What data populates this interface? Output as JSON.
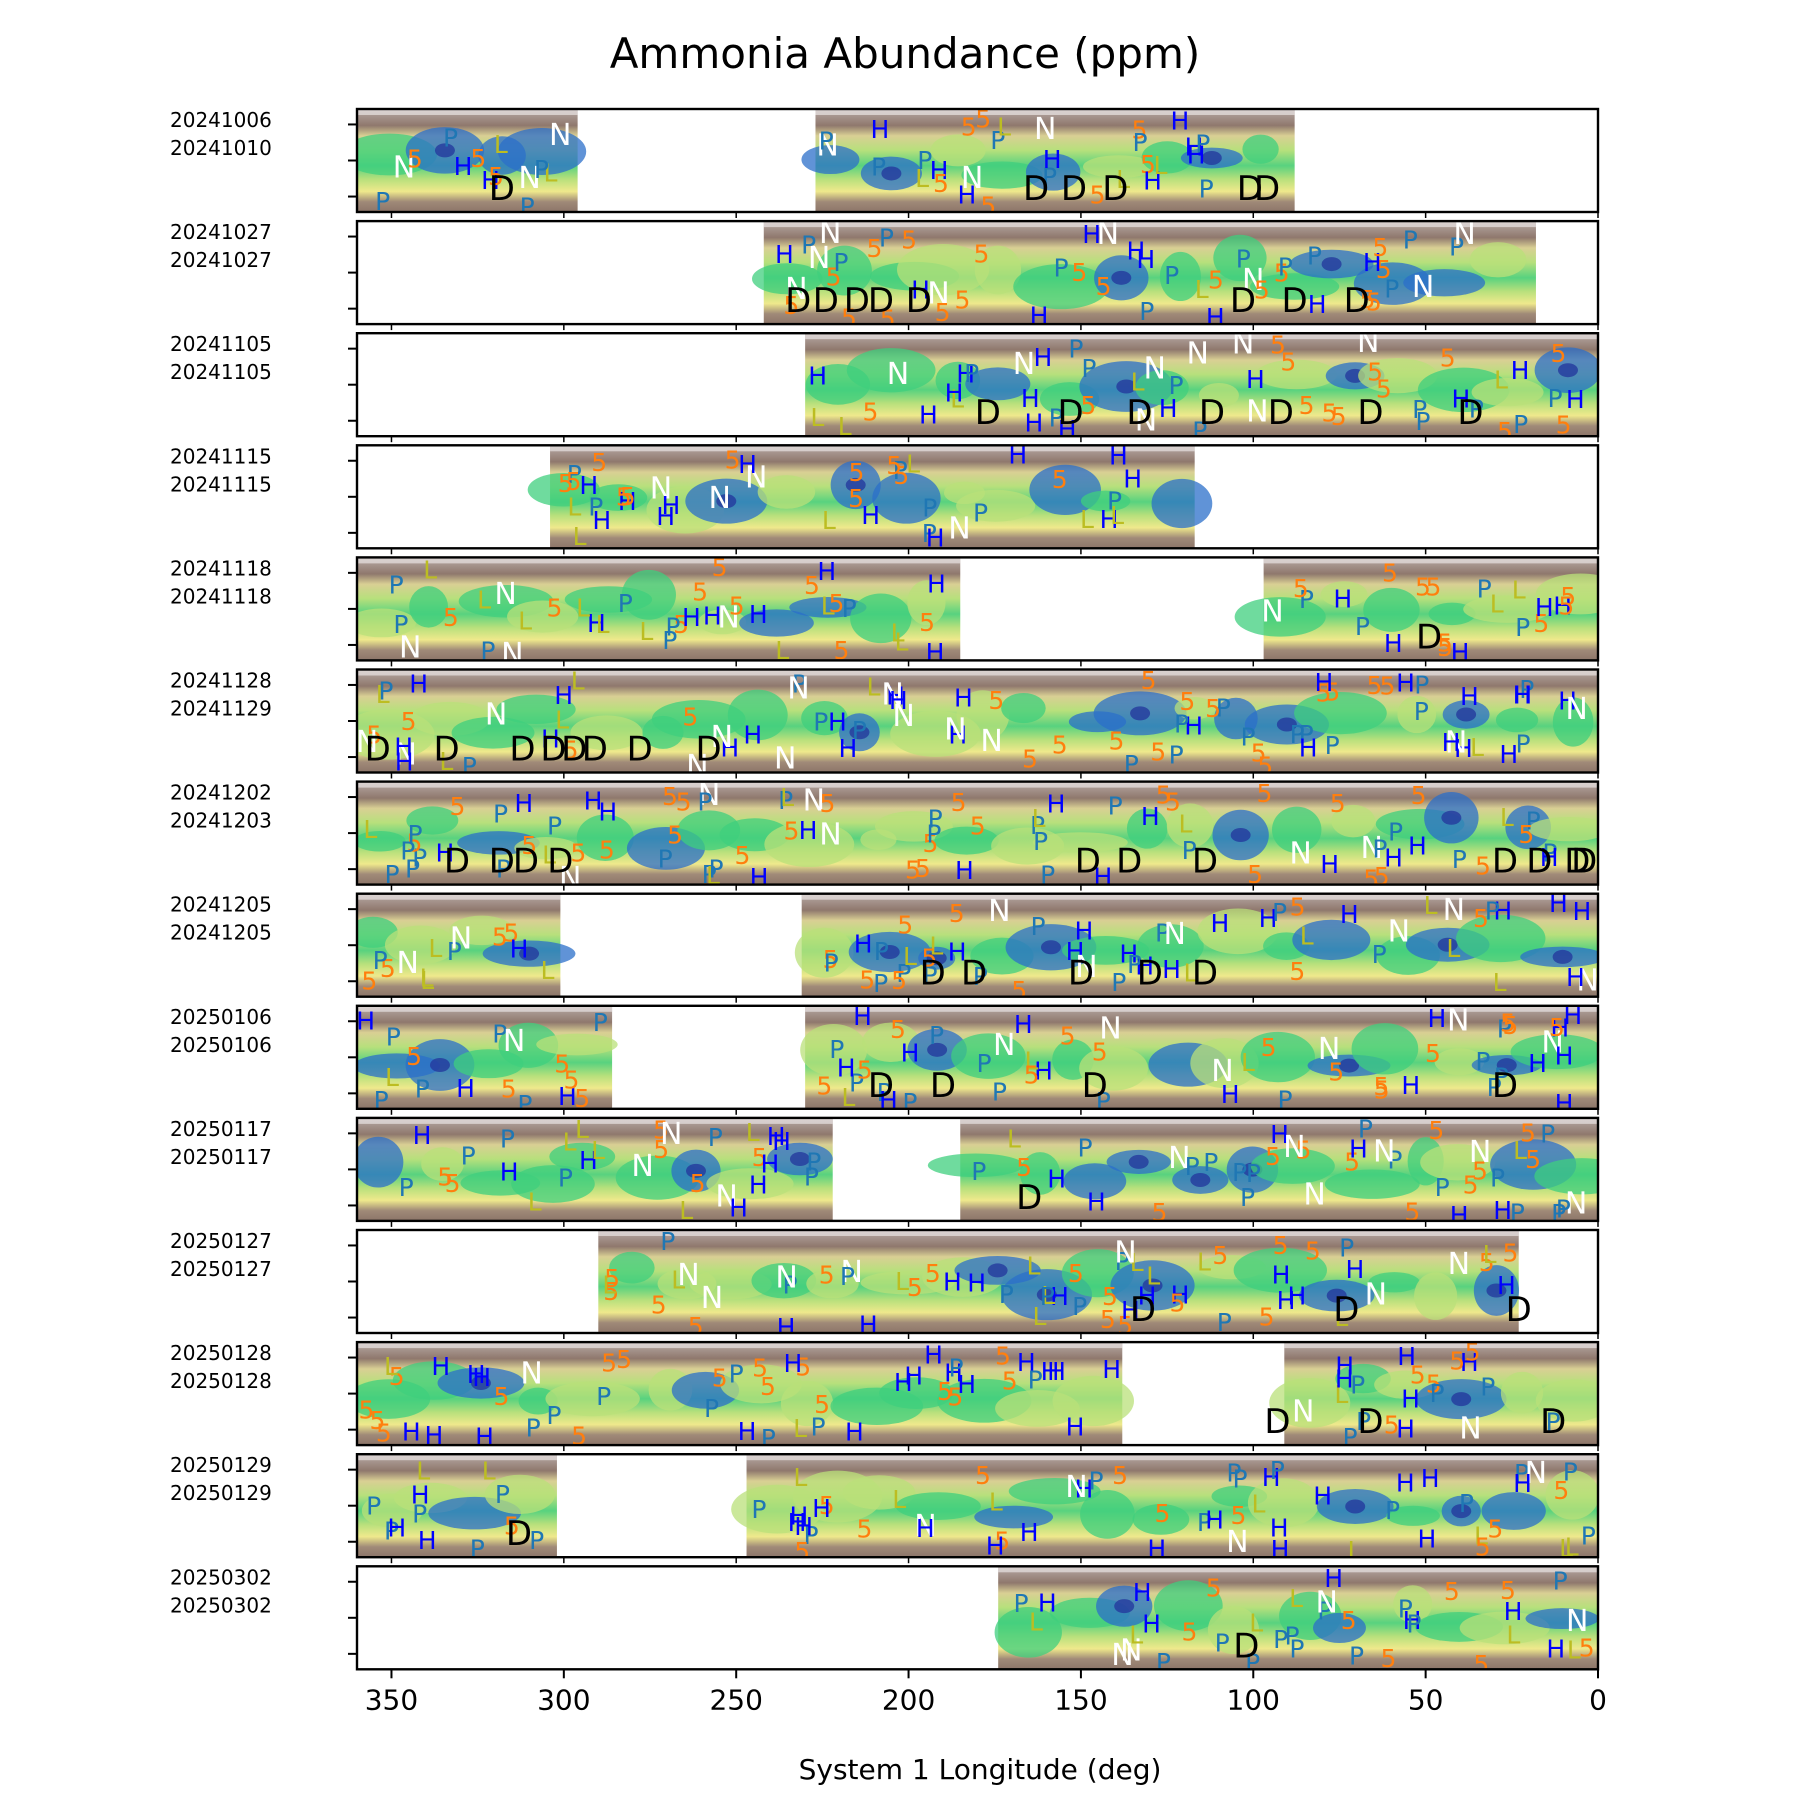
{
  "figure": {
    "title": "Ammonia Abundance (ppm)",
    "xlabel": "System 1 Longitude (deg)"
  },
  "chart_data": {
    "type": "heatmap",
    "title": "Ammonia Abundance (ppm)",
    "xlabel": "System 1 Longitude (deg)",
    "ylabel": "",
    "xlim": [
      360,
      0
    ],
    "xticks": [
      350,
      300,
      250,
      200,
      150,
      100,
      50,
      0
    ],
    "grid": false,
    "legend": "none",
    "colormap": [
      "#ffffff",
      "#d9d4d4",
      "#8c7569",
      "#c9b58a",
      "#f2ee8e",
      "#b9e07a",
      "#3fcf7d",
      "#1aa6a8",
      "#2b6fc9",
      "#243a9e"
    ],
    "marker_colors": {
      "5": "#ff7f0e",
      "H": "#0000ff",
      "P": "#1f77b4",
      "N": "#ffffff",
      "L": "#bcbd22",
      "D": "#000000"
    },
    "panels": [
      {
        "date_start": "20241006",
        "date_end": "20241010",
        "coverage": [
          [
            360,
            296
          ],
          [
            227,
            88
          ]
        ],
        "markers": [
          {
            "t": "D",
            "lon": 318
          },
          {
            "t": "D",
            "lon": 163
          },
          {
            "t": "D",
            "lon": 152
          },
          {
            "t": "D",
            "lon": 140
          },
          {
            "t": "D",
            "lon": 101
          },
          {
            "t": "D",
            "lon": 96
          }
        ]
      },
      {
        "date_start": "20241027",
        "date_end": "20241027",
        "coverage": [
          [
            242,
            18
          ]
        ],
        "markers": [
          {
            "t": "D",
            "lon": 232
          },
          {
            "t": "D",
            "lon": 224
          },
          {
            "t": "D",
            "lon": 215
          },
          {
            "t": "D",
            "lon": 208
          },
          {
            "t": "D",
            "lon": 197
          },
          {
            "t": "D",
            "lon": 103
          },
          {
            "t": "D",
            "lon": 88
          },
          {
            "t": "D",
            "lon": 70
          }
        ]
      },
      {
        "date_start": "20241105",
        "date_end": "20241105",
        "coverage": [
          [
            230,
            0
          ]
        ],
        "markers": [
          {
            "t": "D",
            "lon": 177
          },
          {
            "t": "D",
            "lon": 153
          },
          {
            "t": "D",
            "lon": 133
          },
          {
            "t": "D",
            "lon": 112
          },
          {
            "t": "D",
            "lon": 92
          },
          {
            "t": "D",
            "lon": 66
          },
          {
            "t": "D",
            "lon": 37
          }
        ]
      },
      {
        "date_start": "20241115",
        "date_end": "20241115",
        "coverage": [
          [
            304,
            117
          ]
        ],
        "markers": []
      },
      {
        "date_start": "20241118",
        "date_end": "20241118",
        "coverage": [
          [
            360,
            185
          ],
          [
            97,
            0
          ]
        ],
        "markers": [
          {
            "t": "D",
            "lon": 49
          }
        ]
      },
      {
        "date_start": "20241128",
        "date_end": "20241129",
        "coverage": [
          [
            360,
            0
          ]
        ],
        "markers": [
          {
            "t": "D",
            "lon": 354
          },
          {
            "t": "D",
            "lon": 334
          },
          {
            "t": "D",
            "lon": 312
          },
          {
            "t": "D",
            "lon": 303
          },
          {
            "t": "D",
            "lon": 297
          },
          {
            "t": "D",
            "lon": 291
          },
          {
            "t": "D",
            "lon": 278
          },
          {
            "t": "D",
            "lon": 258
          }
        ]
      },
      {
        "date_start": "20241202",
        "date_end": "20241203",
        "coverage": [
          [
            360,
            0
          ]
        ],
        "markers": [
          {
            "t": "D",
            "lon": 318
          },
          {
            "t": "D",
            "lon": 311
          },
          {
            "t": "D",
            "lon": 331
          },
          {
            "t": "D",
            "lon": 301
          },
          {
            "t": "D",
            "lon": 148
          },
          {
            "t": "D",
            "lon": 136
          },
          {
            "t": "D",
            "lon": 114
          },
          {
            "t": "D",
            "lon": 27
          },
          {
            "t": "D",
            "lon": 17
          },
          {
            "t": "D",
            "lon": 6
          },
          {
            "t": "D",
            "lon": 4
          }
        ]
      },
      {
        "date_start": "20241205",
        "date_end": "20241205",
        "coverage": [
          [
            360,
            301
          ],
          [
            231,
            0
          ]
        ],
        "markers": [
          {
            "t": "D",
            "lon": 193
          },
          {
            "t": "D",
            "lon": 181
          },
          {
            "t": "D",
            "lon": 150
          },
          {
            "t": "D",
            "lon": 130
          },
          {
            "t": "D",
            "lon": 114
          }
        ]
      },
      {
        "date_start": "20250106",
        "date_end": "20250106",
        "coverage": [
          [
            360,
            286
          ],
          [
            230,
            0
          ]
        ],
        "markers": [
          {
            "t": "D",
            "lon": 208
          },
          {
            "t": "D",
            "lon": 190
          },
          {
            "t": "D",
            "lon": 146
          },
          {
            "t": "D",
            "lon": 27
          }
        ]
      },
      {
        "date_start": "20250117",
        "date_end": "20250117",
        "coverage": [
          [
            360,
            222
          ],
          [
            185,
            0
          ]
        ],
        "markers": [
          {
            "t": "D",
            "lon": 165
          }
        ]
      },
      {
        "date_start": "20250127",
        "date_end": "20250127",
        "coverage": [
          [
            290,
            23
          ]
        ],
        "markers": [
          {
            "t": "D",
            "lon": 132
          },
          {
            "t": "D",
            "lon": 73
          },
          {
            "t": "D",
            "lon": 23
          }
        ]
      },
      {
        "date_start": "20250128",
        "date_end": "20250128",
        "coverage": [
          [
            360,
            138
          ],
          [
            91,
            0
          ]
        ],
        "markers": [
          {
            "t": "D",
            "lon": 93
          },
          {
            "t": "D",
            "lon": 66
          },
          {
            "t": "D",
            "lon": 13
          }
        ]
      },
      {
        "date_start": "20250129",
        "date_end": "20250129",
        "coverage": [
          [
            360,
            302
          ],
          [
            247,
            0
          ]
        ],
        "markers": [
          {
            "t": "D",
            "lon": 313
          }
        ]
      },
      {
        "date_start": "20250302",
        "date_end": "20250302",
        "coverage": [
          [
            174,
            0
          ]
        ],
        "markers": [
          {
            "t": "D",
            "lon": 102
          }
        ]
      }
    ]
  }
}
